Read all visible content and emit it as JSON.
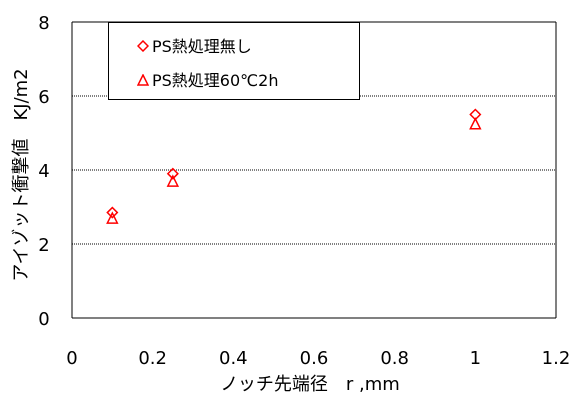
{
  "chart_data": {
    "type": "scatter",
    "xlabel": "ノッチ先端径　r ,mm",
    "ylabel": "アイゾット衝撃値　KJ/m2",
    "xlim": [
      0,
      1.2
    ],
    "ylim": [
      0,
      8
    ],
    "xticks": [
      "0",
      "0.2",
      "0.4",
      "0.6",
      "0.8",
      "1",
      "1.2"
    ],
    "yticks": [
      "0",
      "2",
      "4",
      "6",
      "8"
    ],
    "grid": "horizontal",
    "legend_position": "top-left",
    "series": [
      {
        "name": "PS熱処理無し",
        "marker": "diamond",
        "color": "#ff0000",
        "points": [
          {
            "x": 0.1,
            "y": 2.85
          },
          {
            "x": 0.25,
            "y": 3.9
          },
          {
            "x": 1.0,
            "y": 5.5
          }
        ]
      },
      {
        "name": "PS熱処理60℃2h",
        "marker": "triangle",
        "color": "#ff0000",
        "points": [
          {
            "x": 0.1,
            "y": 2.7
          },
          {
            "x": 0.25,
            "y": 3.7
          },
          {
            "x": 1.0,
            "y": 5.25
          }
        ]
      }
    ]
  }
}
